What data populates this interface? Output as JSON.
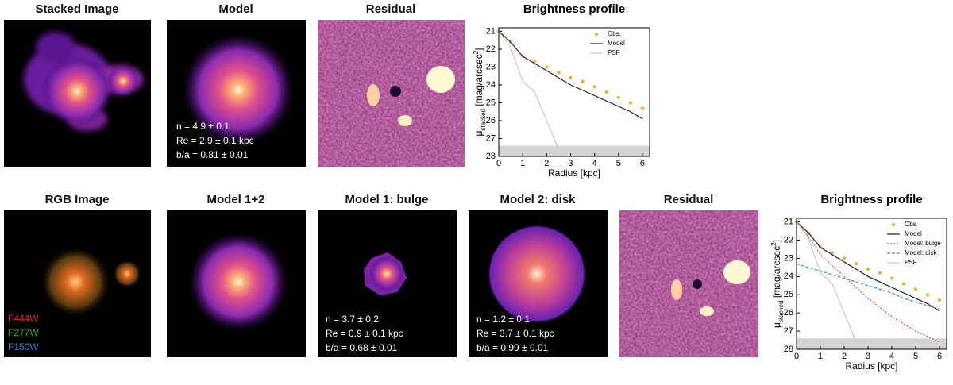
{
  "panels": [
    {
      "title": "Stacked Image"
    },
    {
      "title": "Model",
      "labels": [
        "n = 4.9 ± 0.1",
        "Re = 2.9 ± 0.1 kpc",
        "b/a = 0.81 ± 0.01"
      ]
    },
    {
      "title": "Residual"
    },
    {
      "title": "RGB Image",
      "labels": [
        "F444W",
        "F277W",
        "F150W"
      ]
    },
    {
      "title": "Model 1+2"
    },
    {
      "title": "Model 1: bulge",
      "labels": [
        "n = 3.7 ± 0.2",
        "Re = 0.9 ± 0.1 kpc",
        "b/a = 0.68 ± 0.01"
      ]
    },
    {
      "title": "Model 2: disk",
      "labels": [
        "n = 1.2 ± 0.1",
        "Re = 3.7 ± 0.1 kpc",
        "b/a = 0.99 ± 0.01"
      ]
    },
    {
      "title": "Residual"
    }
  ],
  "chart_data": [
    {
      "type": "line",
      "title": "Brightness profile",
      "xlabel": "Radius [kpc]",
      "ylabel": [
        "μ",
        "stacked",
        " [mag/arcsec",
        "2",
        "]"
      ],
      "x": [
        0,
        0.5,
        1,
        1.5,
        2,
        2.5,
        3,
        3.5,
        4,
        4.5,
        5,
        5.5,
        6
      ],
      "xlim": [
        0,
        6.3
      ],
      "xticks": [
        0,
        1,
        2,
        3,
        4,
        5,
        6
      ],
      "ylim": [
        28,
        20.8
      ],
      "yticks": [
        21,
        22,
        23,
        24,
        25,
        26,
        27,
        28
      ],
      "shaded_band": [
        27.4,
        28
      ],
      "legend": "upper right",
      "series": [
        {
          "name": "Obs.",
          "color": "#f5a623",
          "style": "dots",
          "values": [
            21.0,
            21.6,
            22.4,
            22.7,
            23.0,
            23.3,
            23.6,
            23.8,
            24.1,
            24.4,
            24.7,
            25.0,
            25.3
          ]
        },
        {
          "name": "Model",
          "color": "#222222",
          "style": "solid",
          "values": [
            21.0,
            21.6,
            22.4,
            22.8,
            23.2,
            23.6,
            24.0,
            24.3,
            24.6,
            24.9,
            25.2,
            25.5,
            25.9
          ]
        },
        {
          "name": "PSF",
          "color": "#c8c8c8",
          "style": "solid",
          "values": [
            21.0,
            21.9,
            23.8,
            24.4,
            26.0,
            27.6,
            null,
            null,
            null,
            null,
            null,
            null,
            null
          ]
        }
      ]
    },
    {
      "type": "line",
      "title": "Brightness profile",
      "xlabel": "Radius [kpc]",
      "ylabel": [
        "μ",
        "stacked",
        " [mag/arcsec",
        "2",
        "]"
      ],
      "x": [
        0,
        0.5,
        1,
        1.5,
        2,
        2.5,
        3,
        3.5,
        4,
        4.5,
        5,
        5.5,
        6
      ],
      "xlim": [
        0,
        6.3
      ],
      "xticks": [
        0,
        1,
        2,
        3,
        4,
        5,
        6
      ],
      "ylim": [
        28,
        20.8
      ],
      "yticks": [
        21,
        22,
        23,
        24,
        25,
        26,
        27,
        28
      ],
      "shaded_band": [
        27.4,
        28
      ],
      "legend": "upper right",
      "series": [
        {
          "name": "Obs.",
          "color": "#f5a623",
          "style": "dots",
          "values": [
            21.0,
            21.6,
            22.4,
            22.7,
            23.0,
            23.3,
            23.6,
            23.8,
            24.1,
            24.4,
            24.7,
            25.0,
            25.3
          ]
        },
        {
          "name": "Model",
          "color": "#222222",
          "style": "solid",
          "values": [
            21.0,
            21.6,
            22.4,
            22.8,
            23.2,
            23.6,
            24.0,
            24.3,
            24.6,
            24.9,
            25.2,
            25.5,
            25.9
          ]
        },
        {
          "name": "Model: bulge",
          "color": "#e8503a",
          "style": "dotted",
          "values": [
            21.0,
            21.8,
            22.8,
            23.4,
            24.0,
            24.6,
            25.2,
            25.7,
            26.2,
            26.6,
            27.0,
            27.3,
            27.6
          ]
        },
        {
          "name": "Model: disk",
          "color": "#3a8fd0",
          "style": "dashed",
          "values": [
            23.3,
            23.5,
            23.7,
            23.9,
            24.1,
            24.3,
            24.5,
            24.7,
            24.9,
            25.2,
            25.4,
            25.6,
            25.8
          ]
        },
        {
          "name": "PSF",
          "color": "#c8c8c8",
          "style": "solid",
          "values": [
            21.0,
            21.9,
            23.8,
            24.4,
            26.0,
            27.6,
            null,
            null,
            null,
            null,
            null,
            null,
            null
          ]
        }
      ]
    }
  ]
}
